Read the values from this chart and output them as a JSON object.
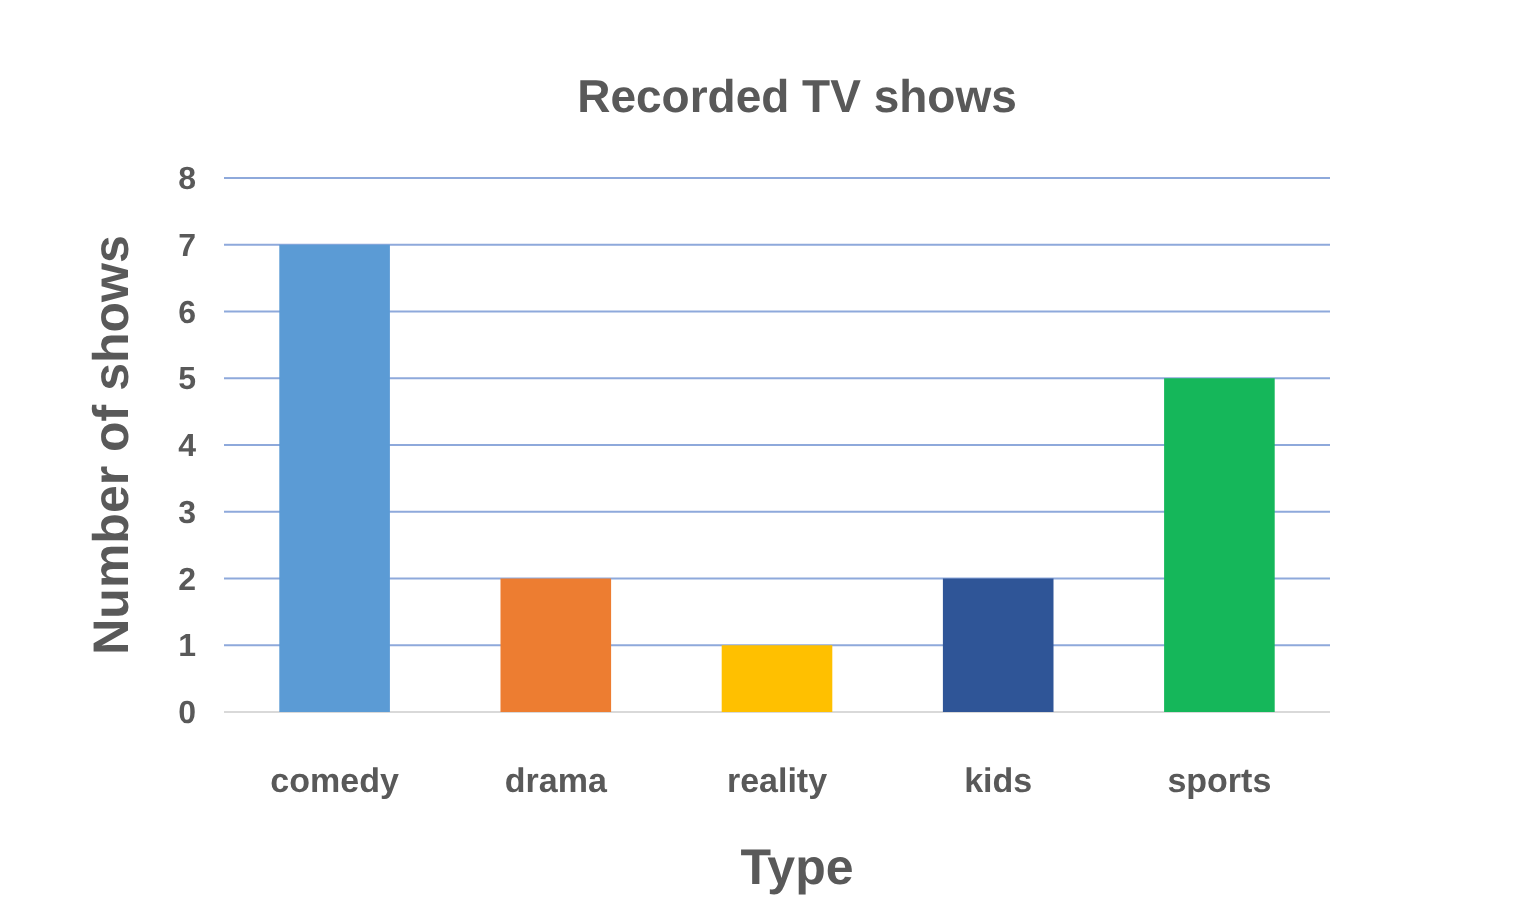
{
  "chart_data": {
    "type": "bar",
    "title": "Recorded TV shows",
    "xlabel": "Type",
    "ylabel": "Number of shows",
    "categories": [
      "comedy",
      "drama",
      "reality",
      "kids",
      "sports"
    ],
    "values": [
      7,
      2,
      1,
      2,
      5
    ],
    "colors": [
      "#5b9bd5",
      "#ed7d31",
      "#ffc000",
      "#2f5597",
      "#15b75a"
    ],
    "ylim": [
      0,
      8
    ],
    "yticks": [
      0,
      1,
      2,
      3,
      4,
      5,
      6,
      7,
      8
    ],
    "grid": "y"
  }
}
